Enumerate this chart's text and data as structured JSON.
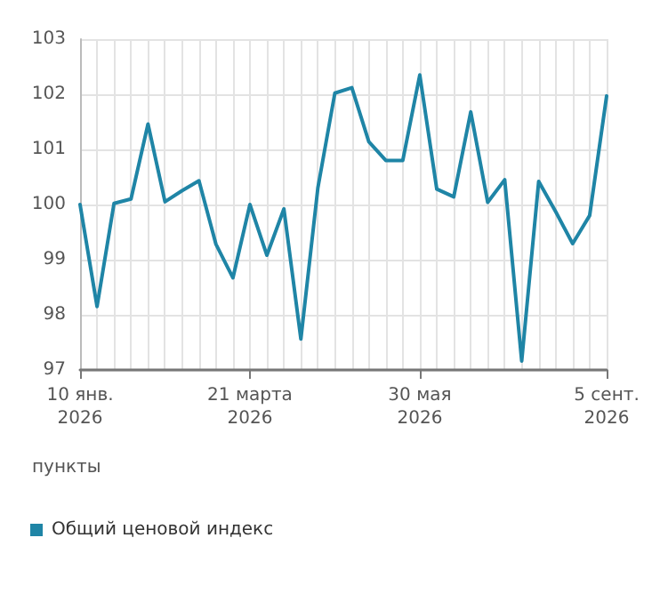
{
  "chart_data": {
    "type": "line",
    "ylabel": "пункты",
    "categories": [
      "10 янв.\n2026",
      null,
      null,
      null,
      null,
      null,
      null,
      null,
      null,
      null,
      "21 марта\n2026",
      null,
      null,
      null,
      null,
      null,
      null,
      null,
      null,
      null,
      "30 мая\n2026",
      null,
      null,
      null,
      null,
      null,
      null,
      null,
      null,
      null,
      null,
      "5 сент.\n2026"
    ],
    "series": [
      {
        "name": "Общий ценовой индекс",
        "color": "#1f85a6",
        "values": [
          100.0,
          98.15,
          100.02,
          100.1,
          101.46,
          100.05,
          100.25,
          100.43,
          99.28,
          98.67,
          100.0,
          99.08,
          99.92,
          97.56,
          100.3,
          102.02,
          102.12,
          101.14,
          100.8,
          100.8,
          102.35,
          100.28,
          100.14,
          101.68,
          100.04,
          100.45,
          97.16,
          100.42,
          99.87,
          99.29,
          99.8,
          101.97
        ]
      }
    ],
    "ylim": [
      97,
      103
    ],
    "yticks": [
      97,
      98,
      99,
      100,
      101,
      102,
      103
    ],
    "grid": true,
    "legend": "bottom left",
    "marker": "none",
    "line_style": "solid"
  }
}
